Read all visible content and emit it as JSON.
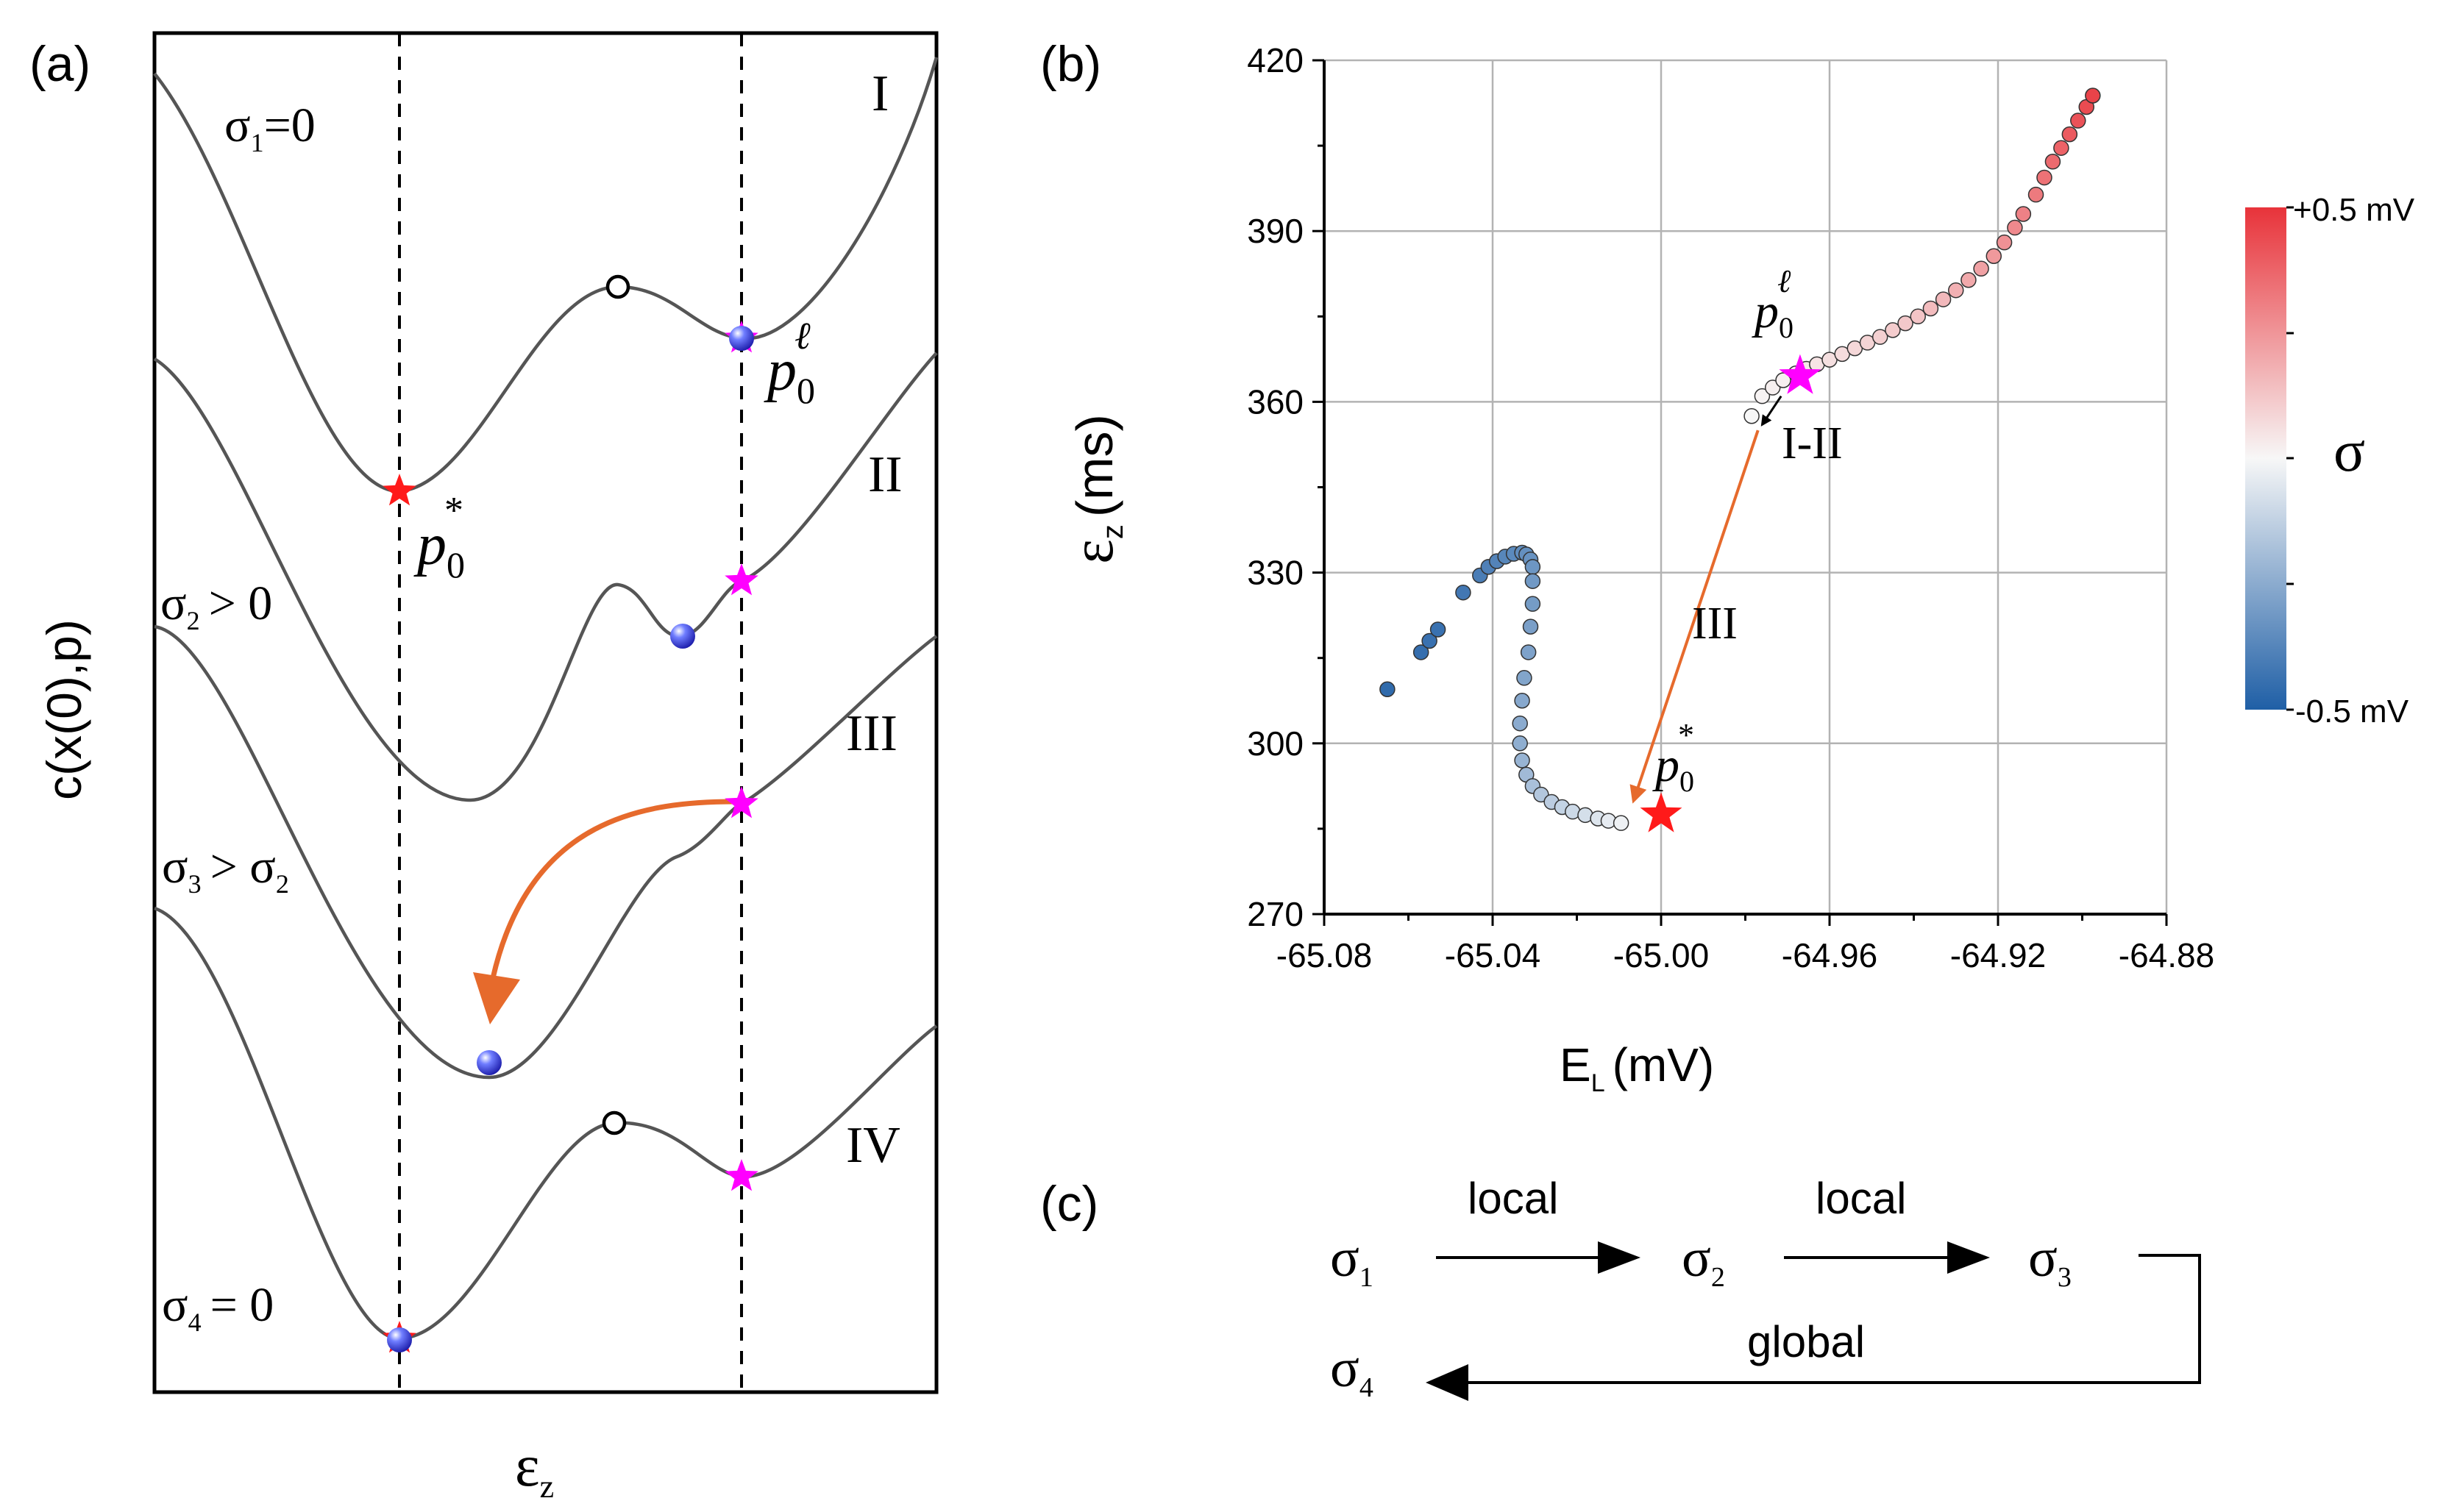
{
  "panel_a": {
    "label": "(a)",
    "y_axis_label": "c(x(0),p)",
    "x_axis_label": "ε",
    "x_axis_sub": "z",
    "curves": [
      {
        "roman": "I",
        "sigma": "σ",
        "sub": "1",
        "cond": "=0"
      },
      {
        "roman": "II",
        "sigma": "σ",
        "sub": "2",
        "cond": "> 0"
      },
      {
        "roman": "III",
        "sigma": "σ",
        "sub": "3",
        "cond": "> σ",
        "cond_sub": "2"
      },
      {
        "roman": "IV",
        "sigma": "σ",
        "sub": "4",
        "cond": "= 0"
      }
    ],
    "p_local": {
      "p": "p",
      "sub": "0",
      "sup": "ℓ"
    },
    "p_star": {
      "p": "p",
      "sub": "0",
      "sup": "*"
    }
  },
  "panel_b": {
    "label": "(b)",
    "xlabel": "E",
    "xlabel_sub": "L",
    "xlabel_unit": "(mV)",
    "ylabel": "ε",
    "ylabel_sub": "z",
    "ylabel_unit": "(ms)",
    "annotations": {
      "transition_12": "I-II",
      "transition_3": "III"
    },
    "p_local": {
      "p": "p",
      "sub": "0",
      "sup": "ℓ"
    },
    "p_star": {
      "p": "p",
      "sub": "0",
      "sup": "*"
    },
    "colorbar": {
      "title": "σ",
      "max_label": "+0.5 mV",
      "min_label": "-0.5 mV",
      "max_color": "#e8333a",
      "mid_color": "#f7f7f7",
      "min_color": "#1f5fa6"
    }
  },
  "chart_data": {
    "type": "scatter",
    "title": "",
    "xlabel": "E_L (mV)",
    "ylabel": "ε_z (ms)",
    "xlim": [
      -65.08,
      -64.88
    ],
    "ylim": [
      270,
      420
    ],
    "xticks": [
      -65.08,
      -65.04,
      -65.0,
      -64.96,
      -64.92,
      -64.88
    ],
    "xtick_labels": [
      "-65.08",
      "-65.04",
      "-65.00",
      "-64.96",
      "-64.92",
      "-64.88"
    ],
    "yticks": [
      270,
      300,
      330,
      360,
      390,
      420
    ],
    "ytick_labels": [
      "270",
      "300",
      "330",
      "360",
      "390",
      "420"
    ],
    "grid": true,
    "color_scale": {
      "variable": "σ",
      "min": -0.5,
      "max": 0.5,
      "unit": "mV"
    },
    "series": [
      {
        "points": [
          {
            "x": -65.065,
            "y": 309.5,
            "c": -0.46
          },
          {
            "x": -65.057,
            "y": 316,
            "c": -0.45
          },
          {
            "x": -65.055,
            "y": 318,
            "c": -0.44
          },
          {
            "x": -65.053,
            "y": 320,
            "c": -0.44
          },
          {
            "x": -65.047,
            "y": 326.5,
            "c": -0.42
          },
          {
            "x": -65.043,
            "y": 329.5,
            "c": -0.4
          },
          {
            "x": -65.041,
            "y": 331,
            "c": -0.39
          },
          {
            "x": -65.039,
            "y": 332,
            "c": -0.38
          },
          {
            "x": -65.037,
            "y": 332.8,
            "c": -0.37
          },
          {
            "x": -65.035,
            "y": 333.3,
            "c": -0.36
          },
          {
            "x": -65.033,
            "y": 333.5,
            "c": -0.35
          },
          {
            "x": -65.032,
            "y": 333.2,
            "c": -0.34
          },
          {
            "x": -65.031,
            "y": 332.3,
            "c": -0.33
          },
          {
            "x": -65.0305,
            "y": 331,
            "c": -0.32
          },
          {
            "x": -65.0305,
            "y": 328.5,
            "c": -0.31
          },
          {
            "x": -65.0305,
            "y": 324.5,
            "c": -0.3
          },
          {
            "x": -65.031,
            "y": 320.5,
            "c": -0.29
          },
          {
            "x": -65.0315,
            "y": 316,
            "c": -0.28
          },
          {
            "x": -65.0325,
            "y": 311.5,
            "c": -0.27
          },
          {
            "x": -65.033,
            "y": 307.5,
            "c": -0.26
          },
          {
            "x": -65.0335,
            "y": 303.5,
            "c": -0.25
          },
          {
            "x": -65.0335,
            "y": 300,
            "c": -0.24
          },
          {
            "x": -65.033,
            "y": 297,
            "c": -0.22
          },
          {
            "x": -65.032,
            "y": 294.5,
            "c": -0.2
          },
          {
            "x": -65.0305,
            "y": 292.5,
            "c": -0.18
          },
          {
            "x": -65.0285,
            "y": 291,
            "c": -0.16
          },
          {
            "x": -65.026,
            "y": 289.7,
            "c": -0.14
          },
          {
            "x": -65.0235,
            "y": 288.8,
            "c": -0.12
          },
          {
            "x": -65.021,
            "y": 288,
            "c": -0.1
          },
          {
            "x": -65.018,
            "y": 287.4,
            "c": -0.08
          },
          {
            "x": -65.015,
            "y": 286.8,
            "c": -0.06
          },
          {
            "x": -65.0125,
            "y": 286.4,
            "c": -0.04
          },
          {
            "x": -65.0095,
            "y": 286,
            "c": -0.02
          },
          {
            "x": -64.9785,
            "y": 357.5,
            "c": 0.0
          },
          {
            "x": -64.976,
            "y": 361,
            "c": 0.01
          },
          {
            "x": -64.9735,
            "y": 362.5,
            "c": 0.02
          },
          {
            "x": -64.971,
            "y": 363.8,
            "c": 0.02
          },
          {
            "x": -64.968,
            "y": 365,
            "c": 0.03
          },
          {
            "x": -64.9655,
            "y": 365.8,
            "c": 0.04
          },
          {
            "x": -64.963,
            "y": 366.6,
            "c": 0.05
          },
          {
            "x": -64.96,
            "y": 367.4,
            "c": 0.06
          },
          {
            "x": -64.957,
            "y": 368.4,
            "c": 0.07
          },
          {
            "x": -64.954,
            "y": 369.4,
            "c": 0.08
          },
          {
            "x": -64.951,
            "y": 370.4,
            "c": 0.09
          },
          {
            "x": -64.948,
            "y": 371.4,
            "c": 0.1
          },
          {
            "x": -64.945,
            "y": 372.6,
            "c": 0.11
          },
          {
            "x": -64.942,
            "y": 373.8,
            "c": 0.12
          },
          {
            "x": -64.939,
            "y": 375,
            "c": 0.13
          },
          {
            "x": -64.936,
            "y": 376.4,
            "c": 0.15
          },
          {
            "x": -64.933,
            "y": 378,
            "c": 0.16
          },
          {
            "x": -64.93,
            "y": 379.6,
            "c": 0.18
          },
          {
            "x": -64.927,
            "y": 381.4,
            "c": 0.2
          },
          {
            "x": -64.924,
            "y": 383.4,
            "c": 0.22
          },
          {
            "x": -64.921,
            "y": 385.6,
            "c": 0.24
          },
          {
            "x": -64.9185,
            "y": 388,
            "c": 0.26
          },
          {
            "x": -64.916,
            "y": 390.6,
            "c": 0.28
          },
          {
            "x": -64.914,
            "y": 393,
            "c": 0.3
          },
          {
            "x": -64.911,
            "y": 396.4,
            "c": 0.32
          },
          {
            "x": -64.909,
            "y": 399.4,
            "c": 0.34
          },
          {
            "x": -64.907,
            "y": 402.2,
            "c": 0.36
          },
          {
            "x": -64.905,
            "y": 404.6,
            "c": 0.38
          },
          {
            "x": -64.903,
            "y": 407,
            "c": 0.4
          },
          {
            "x": -64.901,
            "y": 409.4,
            "c": 0.42
          },
          {
            "x": -64.899,
            "y": 411.8,
            "c": 0.44
          },
          {
            "x": -64.8975,
            "y": 413.8,
            "c": 0.46
          }
        ]
      }
    ],
    "markers": [
      {
        "label": "p0^ℓ",
        "x": -64.967,
        "y": 364.5,
        "color": "#ff00ff"
      },
      {
        "label": "p0^*",
        "x": -65.0,
        "y": 287.5,
        "color": "#ff1a1a"
      }
    ]
  },
  "panel_c": {
    "label": "(c)",
    "sigma": "σ",
    "subs": [
      "1",
      "2",
      "3",
      "4"
    ],
    "arrow_1_label": "local",
    "arrow_2_label": "local",
    "return_label": "global"
  }
}
